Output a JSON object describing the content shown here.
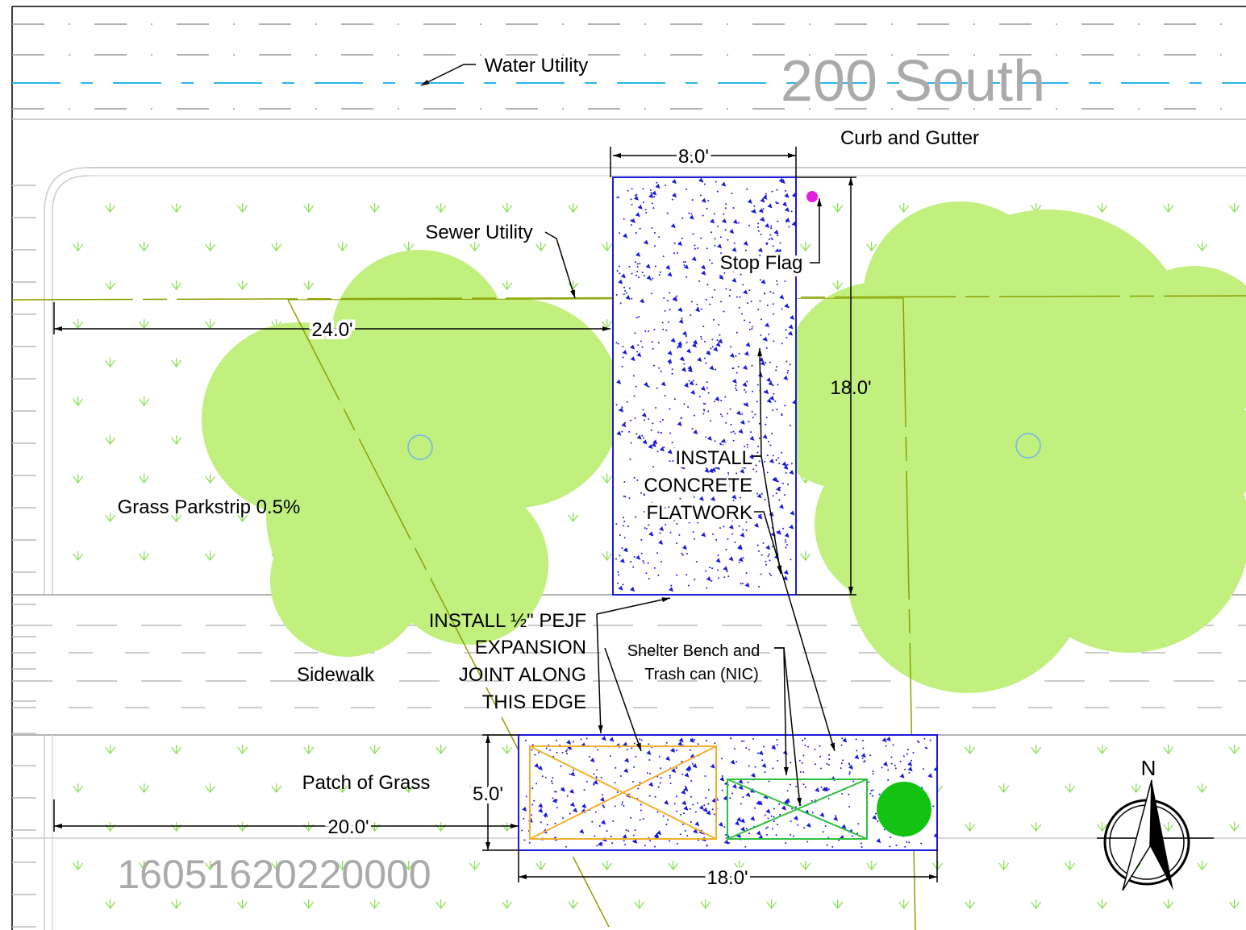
{
  "street": "200 South",
  "labels": {
    "water": "Water Utility",
    "curb": "Curb and Gutter",
    "sewer": "Sewer Utility",
    "stop_flag": "Stop Flag",
    "parkstrip": "Grass Parkstrip 0.5%",
    "sidewalk": "Sidewalk",
    "patch": "Patch of Grass",
    "parcel": "16051620220000",
    "north": "N"
  },
  "notes": {
    "flatwork": [
      "INSTALL",
      "CONCRETE",
      "FLATWORK"
    ],
    "joint": [
      "INSTALL ½\" PEJF",
      "EXPANSION",
      "JOINT ALONG",
      "THIS EDGE"
    ],
    "shelter": [
      "Shelter Bench and",
      "Trash can  (NIC)"
    ]
  },
  "dimensions": {
    "pad_width": "8.0'",
    "pad_offset": "24.0'",
    "pad_length": "18.0'",
    "strip_depth": "5.0'",
    "strip_offset": "20.0'",
    "strip_length": "18.0'"
  }
}
